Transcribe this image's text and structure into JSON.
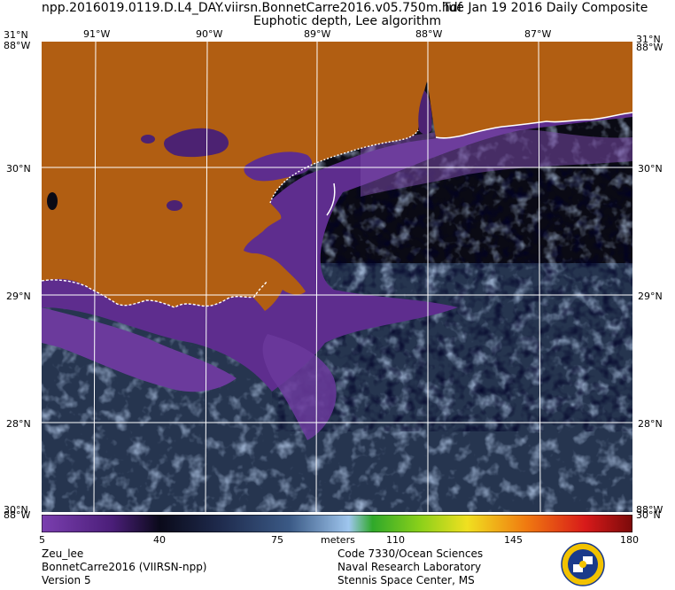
{
  "header": {
    "filename": "npp.2016019.0119.D.L4_DAY.viirsn.BonnetCarre2016.v05.750m.hdf",
    "date_line": "Tue Jan 19 2016 Daily Composite",
    "product": "Euphotic depth, Lee algorithm"
  },
  "map": {
    "lon_labels_top": [
      "91°W",
      "90°W",
      "89°W",
      "88°W",
      "87°W"
    ],
    "lat_labels": [
      "30°N",
      "29°N",
      "28°N"
    ],
    "corner_top_left": "31°N",
    "corner_top_left_lon": "88°W",
    "corner_top_right": "31°N",
    "corner_top_right_lon": "88°W",
    "corner_bottom_left": "30°N",
    "corner_bottom_left_lon": "88°W",
    "corner_bottom_right": "88°W",
    "corner_bottom_right_lat": "30°N",
    "land_color": "#b15e12",
    "coast_color": "#ffffff",
    "grid_color": "#ffffff"
  },
  "colorbar": {
    "ticks": [
      "5",
      "40",
      "75",
      "110",
      "145",
      "180"
    ],
    "units": "meters",
    "min": 5,
    "max": 180
  },
  "footer": {
    "left": [
      "Zeu_lee",
      "BonnetCarre2016 (VIIRSN-npp)",
      "Version 5"
    ],
    "right": [
      "Code 7330/Ocean Sciences",
      "Naval Research Laboratory",
      "Stennis Space Center, MS"
    ]
  },
  "logo": {
    "icon": "nrl-seal-icon"
  }
}
